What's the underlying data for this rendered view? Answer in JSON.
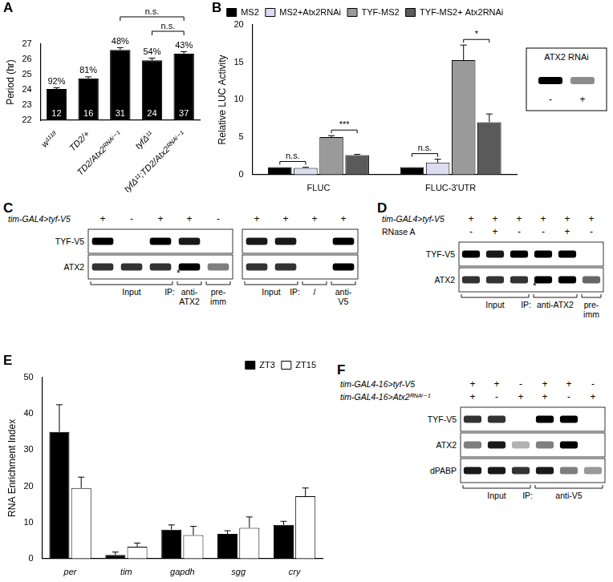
{
  "chart_data": [
    {
      "panel": "A",
      "type": "bar",
      "categories": [
        "w¹¹¹⁸",
        "TD2/+",
        "TD2/Atx2ᴿᴺᴬⁱ⁻¹",
        "tyfΔ¹¹",
        "tyfΔ¹¹;TD2/Atx2ᴿᴺᴬⁱ⁻¹"
      ],
      "values": [
        24.05,
        24.75,
        26.62,
        25.93,
        26.37
      ],
      "errors": [
        0.08,
        0.1,
        0.15,
        0.15,
        0.13
      ],
      "top_labels": [
        "92%",
        "81%",
        "48%",
        "54%",
        "43%"
      ],
      "n": [
        12,
        16,
        31,
        24,
        37
      ],
      "color": "#000000",
      "y_label": "Period (hr)",
      "ylim": [
        22,
        27
      ],
      "yticks": [
        22,
        23,
        24,
        25,
        26,
        27
      ],
      "grid": false,
      "comparisons": [
        {
          "between": [
            "TD2/Atx2ᴿᴺᴬⁱ⁻¹",
            "tyfΔ¹¹;TD2/Atx2ᴿᴺᴬⁱ⁻¹"
          ],
          "label": "n.s."
        },
        {
          "between": [
            "tyfΔ¹¹",
            "tyfΔ¹¹;TD2/Atx2ᴿᴺᴬⁱ⁻¹"
          ],
          "label": "n.s."
        }
      ]
    },
    {
      "panel": "B",
      "type": "bar",
      "categories": [
        "FLUC",
        "FLUC-3'UTR"
      ],
      "series": [
        {
          "name": "MS2",
          "color": "#000000",
          "values": [
            1,
            1
          ],
          "errors": [
            0,
            0
          ]
        },
        {
          "name": "MS2+Atx2RNAi",
          "color": "#dcdcf2",
          "values": [
            0.9,
            1.6
          ],
          "errors": [
            0.08,
            0.45
          ]
        },
        {
          "name": "TYF-MS2",
          "color": "#9a9a9a",
          "values": [
            5.0,
            15.3
          ],
          "errors": [
            0.2,
            2.0
          ]
        },
        {
          "name": "TYF-MS2+ Atx2RNAi",
          "color": "#5a5a5a",
          "values": [
            2.6,
            7.0
          ],
          "errors": [
            0.1,
            1.1
          ]
        }
      ],
      "y_label": "Relative LUC Activity",
      "ylim": [
        0,
        20
      ],
      "yticks": [
        0,
        5,
        10,
        15,
        20
      ],
      "grid": false,
      "legend": "top",
      "comparisons": [
        {
          "category": "FLUC",
          "between": [
            "MS2",
            "MS2+Atx2RNAi"
          ],
          "label": "n.s."
        },
        {
          "category": "FLUC",
          "between": [
            "TYF-MS2",
            "TYF-MS2+ Atx2RNAi"
          ],
          "label": "***"
        },
        {
          "category": "FLUC-3'UTR",
          "between": [
            "MS2",
            "MS2+Atx2RNAi"
          ],
          "label": "n.s."
        },
        {
          "category": "FLUC-3'UTR",
          "between": [
            "TYF-MS2",
            "TYF-MS2+ Atx2RNAi"
          ],
          "label": "*"
        }
      ],
      "inset": {
        "title": "ATX2 RNAi",
        "signs": [
          "-",
          "+"
        ],
        "bands": [
          1,
          0.45
        ]
      }
    },
    {
      "panel": "E",
      "type": "bar",
      "categories": [
        "per",
        "tim",
        "gapdh",
        "sgg",
        "cry"
      ],
      "series": [
        {
          "name": "ZT3",
          "color": "#000000",
          "values": [
            35,
            1,
            8,
            6.8,
            9.3
          ],
          "errors": [
            7.5,
            0.8,
            1.3,
            0.9,
            1.0
          ]
        },
        {
          "name": "ZT15",
          "color": "#ffffff",
          "values": [
            19.5,
            3.3,
            6.5,
            8.5,
            17.2
          ],
          "errors": [
            3,
            1,
            2.4,
            3,
            2.3
          ]
        }
      ],
      "y_label": "RNA Enrichment Index",
      "ylim": [
        0,
        50
      ],
      "yticks": [
        0,
        10,
        20,
        30,
        40,
        50
      ],
      "grid": false,
      "legend": "top-right"
    }
  ],
  "blots": [
    {
      "panel": "C",
      "blots": [
        {
          "header": [
            {
              "label": "tim-GAL4>tyf-V5",
              "signs": [
                "+",
                "-",
                "+",
                "+",
                "-"
              ]
            }
          ],
          "rows": [
            {
              "label": "TYF-V5",
              "bands": [
                1,
                0,
                1,
                0.9,
                0
              ]
            },
            {
              "label": "ATX2",
              "bands": [
                0.8,
                0.8,
                0.8,
                1,
                0.5
              ],
              "mark": "*",
              "mark_lane": 4
            }
          ],
          "ip_label": "IP:",
          "groups": [
            {
              "label": "Input",
              "span": 3
            },
            {
              "label": "anti-ATX2",
              "span": 1,
              "ip": true
            },
            {
              "label": "pre-imm",
              "span": 1,
              "ip": true
            }
          ]
        },
        {
          "header": [
            {
              "signs": [
                "+",
                "+",
                "+",
                "+"
              ]
            }
          ],
          "rows": [
            {
              "bands": [
                0.9,
                0.9,
                0,
                1
              ]
            },
            {
              "bands": [
                0.8,
                0.8,
                0,
                1
              ]
            }
          ],
          "ip_label": "IP:",
          "groups": [
            {
              "label": "Input",
              "span": 2
            },
            {
              "label": "/",
              "span": 1,
              "ip": true
            },
            {
              "label": "anti-V5",
              "span": 1,
              "ip": true
            }
          ]
        }
      ]
    },
    {
      "panel": "D",
      "blots": [
        {
          "header": [
            {
              "label": "tim-GAL4>tyf-V5",
              "signs": [
                "+",
                "+",
                "+",
                "+",
                "+",
                "+"
              ]
            },
            {
              "label": "RNase A",
              "signs": [
                "-",
                "+",
                "-",
                "-",
                "+",
                "-"
              ]
            }
          ],
          "rows": [
            {
              "label": "TYF-V5",
              "bands": [
                1,
                0.9,
                1,
                1,
                1,
                0
              ]
            },
            {
              "label": "ATX2",
              "bands": [
                0.8,
                0.8,
                0.8,
                1,
                1,
                0.6
              ],
              "mark": "*",
              "mark_lane": 4
            }
          ],
          "ip_label": "IP:",
          "groups": [
            {
              "label": "Input",
              "span": 3
            },
            {
              "label": "anti-ATX2",
              "span": 2,
              "ip": true
            },
            {
              "label": "pre-imm",
              "span": 1,
              "ip": true
            }
          ]
        }
      ]
    },
    {
      "panel": "F",
      "blots": [
        {
          "header": [
            {
              "label": "tim-GAL4-16>tyf-V5",
              "signs": [
                "+",
                "+",
                "-",
                "+",
                "+",
                "-"
              ]
            },
            {
              "label": "tim-GAL4-16>Atx2ᴿᴺᴬⁱ⁻¹",
              "signs": [
                "+",
                "-",
                "+",
                "+",
                "-",
                "+"
              ]
            }
          ],
          "rows": [
            {
              "label": "TYF-V5",
              "bands": [
                0.8,
                0.8,
                0,
                1,
                1,
                0
              ]
            },
            {
              "label": "ATX2",
              "bands": [
                0.5,
                0.9,
                0.3,
                0.5,
                1,
                0
              ]
            },
            {
              "label": "dPABP",
              "bands": [
                0.9,
                0.9,
                0.8,
                0.9,
                0.5,
                0.4
              ]
            }
          ],
          "ip_label": "IP:",
          "groups": [
            {
              "label": "Input",
              "span": 3
            },
            {
              "label": "anti-V5",
              "span": 3,
              "ip": true
            }
          ]
        }
      ]
    }
  ]
}
